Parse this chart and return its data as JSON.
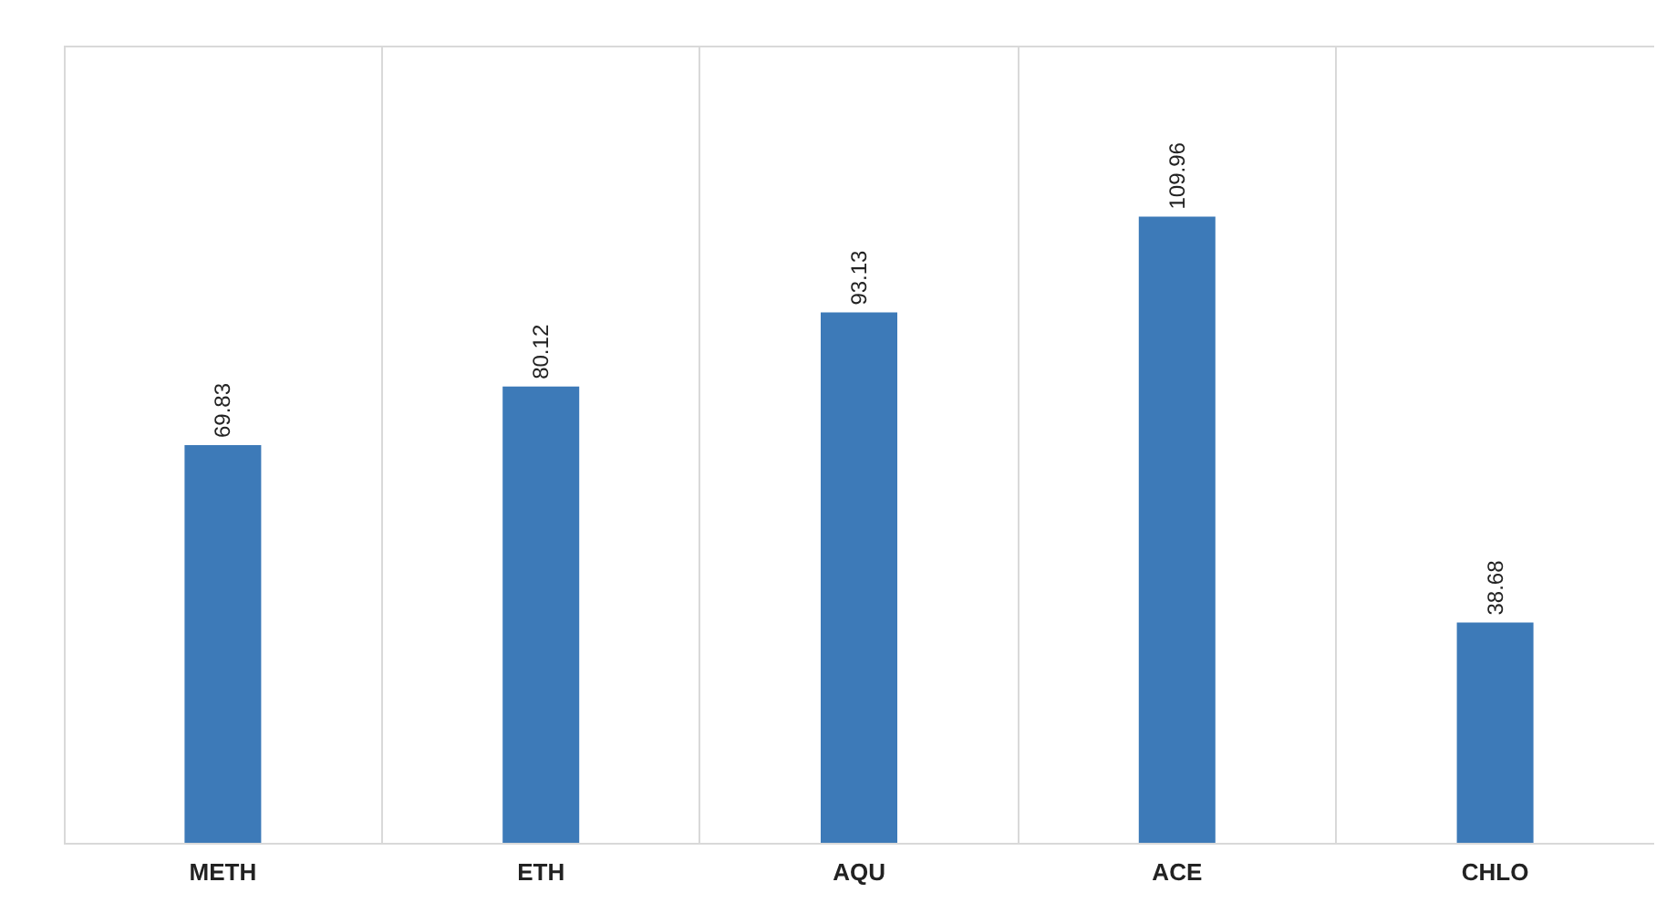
{
  "chart_data": {
    "type": "bar",
    "categories": [
      "METH",
      "ETH",
      "AQU",
      "ACE",
      "CHLO"
    ],
    "values": [
      69.83,
      80.12,
      93.13,
      109.96,
      38.68
    ],
    "color": "#3d7ab8",
    "ylim": [
      0,
      140
    ],
    "data_labels": true,
    "grid": "x",
    "tick_labels": "x"
  }
}
